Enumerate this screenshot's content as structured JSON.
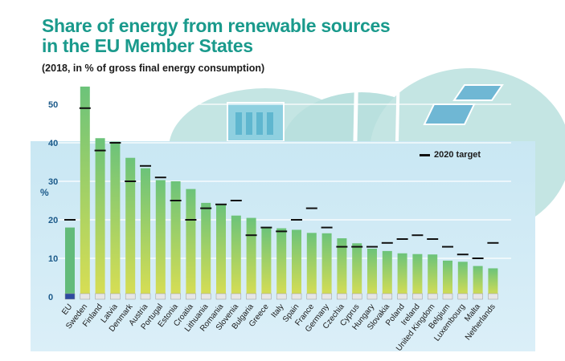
{
  "title_line1": "Share of energy from renewable sources",
  "title_line2": "in the EU Member States",
  "subtitle": "(2018, in % of gross final energy consumption)",
  "legend_label": "2020 target",
  "y_unit": "%",
  "colors": {
    "title": "#1a9a8c",
    "axis_text": "#1c5a8a",
    "bar_top": "#6cc37a",
    "bar_bottom": "#d9de53",
    "bar_eu": "#63bb7a",
    "panel": "#cfe9f4",
    "hill": "#bfe3e3",
    "target": "#111111"
  },
  "chart_data": {
    "type": "bar",
    "title": "Share of energy from renewable sources in the EU Member States",
    "subtitle": "(2018, in % of gross final energy consumption)",
    "ylabel": "%",
    "ylim": [
      0,
      55
    ],
    "yticks": [
      0,
      10,
      20,
      30,
      40,
      50
    ],
    "legend": [
      "2020 target"
    ],
    "legend_position": "top-right",
    "grid": true,
    "categories": [
      "EU",
      "Sweden",
      "Finland",
      "Latvia",
      "Denmark",
      "Austria",
      "Portugal",
      "Estonia",
      "Croatia",
      "Lithuania",
      "Romania",
      "Slovenia",
      "Bulgaria",
      "Greece",
      "Italy",
      "Spain",
      "France",
      "Germany",
      "Czechia",
      "Cyprus",
      "Hungary",
      "Slovakia",
      "Poland",
      "Ireland",
      "United Kingdom",
      "Belgium",
      "Luxembourg",
      "Malta",
      "Netherlands"
    ],
    "values": [
      18.0,
      54.6,
      41.2,
      40.3,
      36.1,
      33.4,
      30.3,
      30.0,
      28.0,
      24.4,
      23.9,
      21.1,
      20.5,
      18.0,
      17.8,
      17.4,
      16.6,
      16.5,
      15.2,
      13.9,
      12.5,
      11.9,
      11.3,
      11.1,
      11.0,
      9.4,
      9.1,
      8.0,
      7.4
    ],
    "targets": [
      20,
      49,
      38,
      40,
      30,
      34,
      31,
      25,
      20,
      23,
      24,
      25,
      16,
      18,
      17,
      20,
      23,
      18,
      13,
      13,
      13,
      14,
      15,
      16,
      15,
      13,
      11,
      10,
      14
    ]
  }
}
